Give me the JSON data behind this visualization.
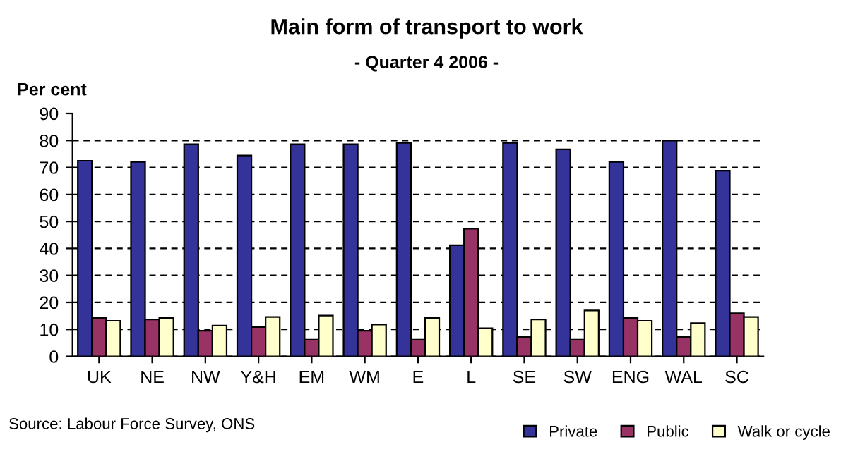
{
  "chart_data": {
    "type": "bar",
    "title": "Main form of transport to work",
    "subtitle": "- Quarter 4 2006 -",
    "ylabel": "Per cent",
    "categories": [
      "UK",
      "NE",
      "NW",
      "Y&H",
      "EM",
      "WM",
      "E",
      "L",
      "SE",
      "SW",
      "ENG",
      "WAL",
      "SC"
    ],
    "series": [
      {
        "name": "Private",
        "color": "#333399",
        "values": [
          72.5,
          72.1,
          78.6,
          74.4,
          78.6,
          78.6,
          79.1,
          41.2,
          79.1,
          76.7,
          72.1,
          80.0,
          68.8
        ]
      },
      {
        "name": "Public",
        "color": "#993366",
        "values": [
          14.2,
          13.7,
          9.5,
          10.9,
          6.2,
          9.5,
          6.2,
          47.3,
          7.2,
          6.2,
          14.2,
          7.2,
          16.0
        ]
      },
      {
        "name": "Walk or cycle",
        "color": "#ffffcc",
        "values": [
          13.2,
          14.2,
          11.4,
          14.6,
          15.1,
          11.8,
          14.2,
          10.4,
          13.7,
          17.0,
          13.2,
          12.3,
          14.6
        ]
      }
    ],
    "ylim": [
      0,
      90
    ],
    "yticks": [
      0,
      10,
      20,
      30,
      40,
      50,
      60,
      70,
      80,
      90
    ],
    "grid": "y",
    "legend": "bottom right",
    "annotations": [
      "Source: Labour Force Survey, ONS"
    ]
  }
}
